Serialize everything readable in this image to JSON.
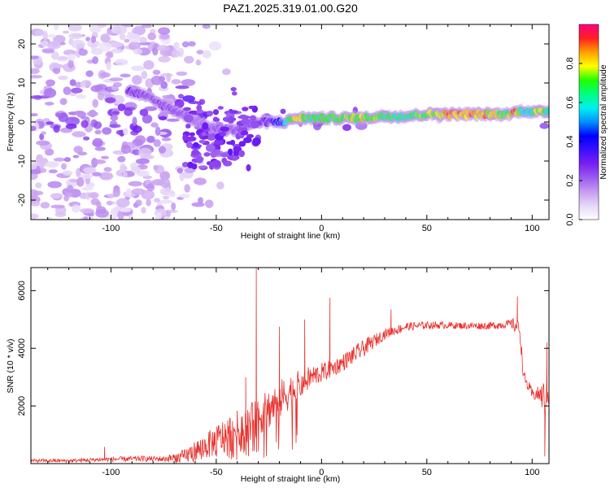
{
  "title": "PAZ1.2025.319.01.00.G20",
  "colors": {
    "snr_line": "#e8302c",
    "colorbar": [
      "#ffffff",
      "#e6d8f8",
      "#c79cf0",
      "#9a5cf0",
      "#7a20f0",
      "#3a10ff",
      "#0000ff",
      "#0090ff",
      "#00f0f0",
      "#00ff80",
      "#20ff00",
      "#ffff00",
      "#ffa000",
      "#ff2020",
      "#ff0080"
    ]
  },
  "chart_data": [
    {
      "type": "heatmap",
      "name": "spectrogram",
      "title": "PAZ1.2025.319.01.00.G20",
      "xlabel": "Height of straight line (km)",
      "ylabel": "Frequency (Hz)",
      "xlim": [
        -138,
        108
      ],
      "ylim": [
        -25,
        25
      ],
      "xticks": [
        -100,
        -50,
        0,
        50,
        100
      ],
      "yticks": [
        -20,
        -10,
        0,
        10,
        20
      ],
      "xtick_labels": [
        "-100",
        "-50",
        "0",
        "50",
        "100"
      ],
      "ytick_labels": [
        "-20",
        "-10",
        "0",
        "10",
        "20"
      ],
      "colorbar": {
        "label": "Normalized spectral amplitude",
        "range": [
          0,
          1
        ],
        "ticks": [
          0.0,
          0.2,
          0.4,
          0.6,
          0.8
        ],
        "tick_labels": [
          "0.0",
          "0.2",
          "0.4",
          "0.6",
          "0.8"
        ]
      },
      "ridge": {
        "x": [
          -92,
          -85,
          -78,
          -70,
          -62,
          -55,
          -48,
          -42,
          -36,
          -30,
          -24,
          -18,
          -12,
          -6,
          0,
          10,
          20,
          30,
          40,
          50,
          60,
          70,
          80,
          88,
          92,
          96,
          100,
          104,
          108
        ],
        "y": [
          8,
          7,
          5,
          3,
          1,
          -1,
          -2,
          -2,
          -1,
          0,
          0,
          0,
          1,
          1,
          1,
          1,
          1,
          1.5,
          1.5,
          2,
          2,
          2,
          2,
          2,
          2.5,
          3,
          2.5,
          2.5,
          3
        ],
        "amplitude": [
          0.3,
          0.25,
          0.25,
          0.25,
          0.2,
          0.2,
          0.25,
          0.25,
          0.25,
          0.3,
          0.35,
          0.5,
          0.85,
          0.7,
          0.7,
          0.75,
          0.8,
          0.7,
          0.7,
          0.75,
          0.9,
          0.9,
          0.85,
          0.7,
          0.95,
          0.6,
          0.65,
          0.9,
          0.6
        ]
      }
    },
    {
      "type": "line",
      "name": "snr",
      "xlabel": "Height of straight line (km)",
      "ylabel": "SNR (10 * v/v)",
      "xlim": [
        -138,
        108
      ],
      "ylim": [
        0,
        6800
      ],
      "xticks": [
        -100,
        -50,
        0,
        50,
        100
      ],
      "yticks": [
        2000,
        4000,
        6000
      ],
      "xtick_labels": [
        "-100",
        "-50",
        "0",
        "50",
        "100"
      ],
      "ytick_labels": [
        "2000",
        "4000",
        "6000"
      ],
      "envelope": {
        "x": [
          -138,
          -120,
          -100,
          -85,
          -75,
          -65,
          -60,
          -55,
          -50,
          -45,
          -40,
          -35,
          -30,
          -25,
          -20,
          -15,
          -10,
          -5,
          0,
          5,
          10,
          20,
          30,
          40,
          50,
          60,
          70,
          80,
          90,
          92,
          94,
          96,
          100,
          104,
          106,
          108
        ],
        "y": [
          100,
          100,
          150,
          170,
          160,
          250,
          450,
          600,
          800,
          1000,
          1200,
          1400,
          1600,
          1900,
          2200,
          2500,
          2750,
          3000,
          3150,
          3300,
          3500,
          4000,
          4500,
          4750,
          4800,
          4800,
          4780,
          4780,
          4850,
          4800,
          4700,
          3000,
          2400,
          2400,
          2200,
          2400
        ],
        "jitter": [
          60,
          60,
          80,
          100,
          100,
          250,
          350,
          450,
          550,
          650,
          650,
          650,
          650,
          700,
          700,
          600,
          500,
          400,
          350,
          300,
          300,
          300,
          180,
          150,
          130,
          120,
          120,
          130,
          150,
          300,
          250,
          250,
          200,
          300,
          800,
          300
        ]
      },
      "spikes": [
        {
          "x": -103,
          "y": 580
        },
        {
          "x": -36,
          "y": 3000
        },
        {
          "x": -31,
          "y": 6800
        },
        {
          "x": -20,
          "y": 4750
        },
        {
          "x": -8,
          "y": 5000
        },
        {
          "x": 4,
          "y": 5750
        },
        {
          "x": 33,
          "y": 5350
        },
        {
          "x": 93,
          "y": 5800
        },
        {
          "x": 106,
          "y": 250
        },
        {
          "x": 107,
          "y": 4200
        }
      ]
    }
  ]
}
